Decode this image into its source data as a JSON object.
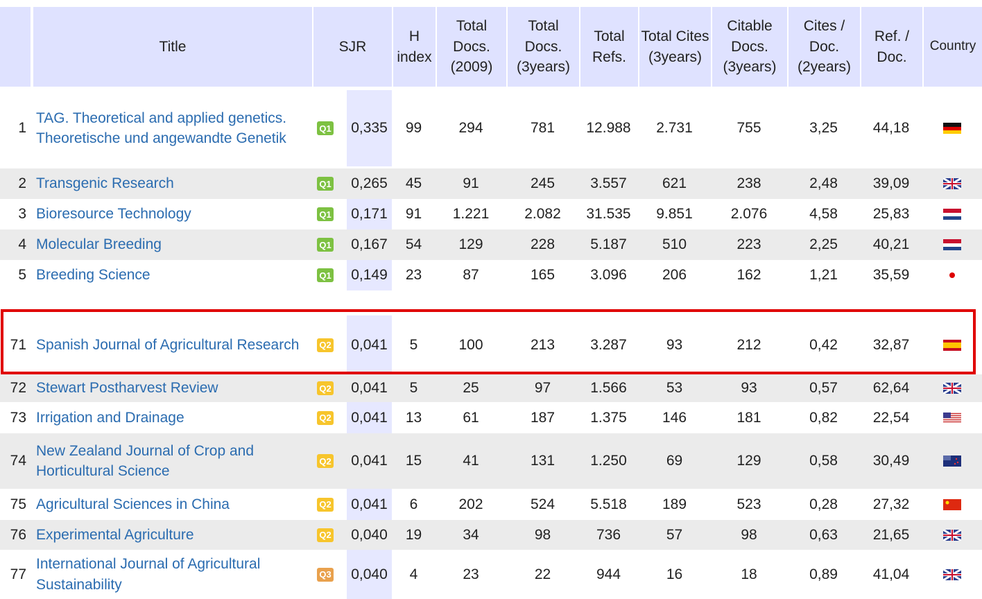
{
  "table": {
    "header": [
      "Title",
      "SJR",
      "H index",
      "Total Docs. (2009)",
      "Total Docs. (3years)",
      "Total Refs.",
      "Total Cites (3years)",
      "Citable Docs. (3years)",
      "Cites / Doc. (2years)",
      "Ref. / Doc.",
      "Country"
    ],
    "rows": [
      {
        "rank": "1",
        "title": "TAG. Theoretical and applied genetics. Theoretische und angewandte Genetik",
        "quartile": "Q1",
        "values": [
          "0,335",
          "99",
          "294",
          "781",
          "12.988",
          "2.731",
          "755",
          "3,25",
          "44,18"
        ]
      },
      {
        "rank": "2",
        "title": "Transgenic Research",
        "quartile": "Q1",
        "values": [
          "0,265",
          "45",
          "91",
          "245",
          "3.557",
          "621",
          "238",
          "2,48",
          "39,09"
        ]
      },
      {
        "rank": "3",
        "title": "Bioresource Technology",
        "quartile": "Q1",
        "values": [
          "0,171",
          "91",
          "1.221",
          "2.082",
          "31.535",
          "9.851",
          "2.076",
          "4,58",
          "25,83"
        ]
      },
      {
        "rank": "4",
        "title": "Molecular Breeding",
        "quartile": "Q1",
        "values": [
          "0,167",
          "54",
          "129",
          "228",
          "5.187",
          "510",
          "223",
          "2,25",
          "40,21"
        ]
      },
      {
        "rank": "5",
        "title": "Breeding Science",
        "quartile": "Q1",
        "values": [
          "0,149",
          "23",
          "87",
          "165",
          "3.096",
          "206",
          "162",
          "1,21",
          "35,59"
        ]
      },
      {
        "rank": "71",
        "title": "Spanish Journal of Agricultural Research",
        "quartile": "Q2",
        "values": [
          "0,041",
          "5",
          "100",
          "213",
          "3.287",
          "93",
          "212",
          "0,42",
          "32,87"
        ]
      },
      {
        "rank": "72",
        "title": "Stewart Postharvest Review",
        "quartile": "Q2",
        "values": [
          "0,041",
          "5",
          "25",
          "97",
          "1.566",
          "53",
          "93",
          "0,57",
          "62,64"
        ]
      },
      {
        "rank": "73",
        "title": "Irrigation and Drainage",
        "quartile": "Q2",
        "values": [
          "0,041",
          "13",
          "61",
          "187",
          "1.375",
          "146",
          "181",
          "0,82",
          "22,54"
        ]
      },
      {
        "rank": "74",
        "title": "New Zealand Journal of Crop and Horticultural Science",
        "quartile": "Q2",
        "values": [
          "0,041",
          "15",
          "41",
          "131",
          "1.250",
          "69",
          "129",
          "0,58",
          "30,49"
        ]
      },
      {
        "rank": "75",
        "title": "Agricultural Sciences in China",
        "quartile": "Q2",
        "values": [
          "0,041",
          "6",
          "202",
          "524",
          "5.518",
          "189",
          "523",
          "0,28",
          "27,32"
        ]
      },
      {
        "rank": "76",
        "title": "Experimental Agriculture",
        "quartile": "Q2",
        "values": [
          "0,040",
          "19",
          "34",
          "98",
          "736",
          "57",
          "98",
          "0,63",
          "21,65"
        ]
      },
      {
        "rank": "77",
        "title": "International Journal of Agricultural Sustainability",
        "quartile": "Q3",
        "values": [
          "0,040",
          "4",
          "23",
          "22",
          "944",
          "16",
          "18",
          "0,89",
          "41,04"
        ]
      }
    ]
  }
}
